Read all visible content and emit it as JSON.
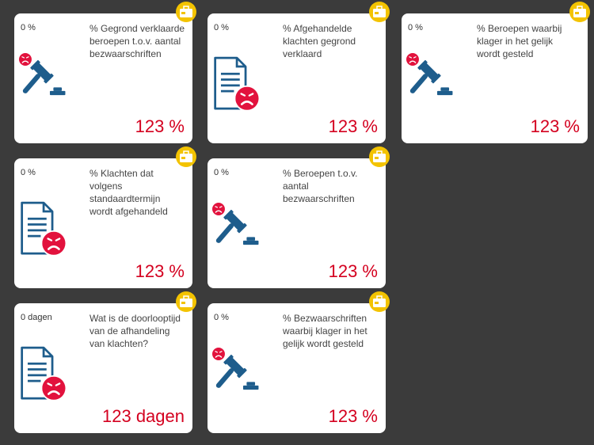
{
  "cards": [
    {
      "label": "0 %",
      "title": "% Gegrond verklaarde beroepen t.o.v. aantal bezwaarschriften",
      "value": "123 %"
    },
    {
      "label": "0 %",
      "title": "% Afgehandelde klachten gegrond verklaard",
      "value": "123 %"
    },
    {
      "label": "0 %",
      "title": "% Beroepen waarbij klager in het gelijk wordt gesteld",
      "value": "123 %"
    },
    {
      "label": "0 %",
      "title": "% Klachten dat volgens standaardtermijn wordt afgehandeld",
      "value": "123 %"
    },
    {
      "label": "0 %",
      "title": "% Beroepen t.o.v. aantal bezwaarschriften",
      "value": "123 %"
    },
    {
      "label": "0 dagen",
      "title": "Wat is de doorlooptijd van de afhandeling van klachten?",
      "value": "123 dagen"
    },
    {
      "label": "0 %",
      "title": "% Bezwaarschriften waarbij klager in het gelijk wordt gesteld",
      "value": "123 %"
    }
  ]
}
